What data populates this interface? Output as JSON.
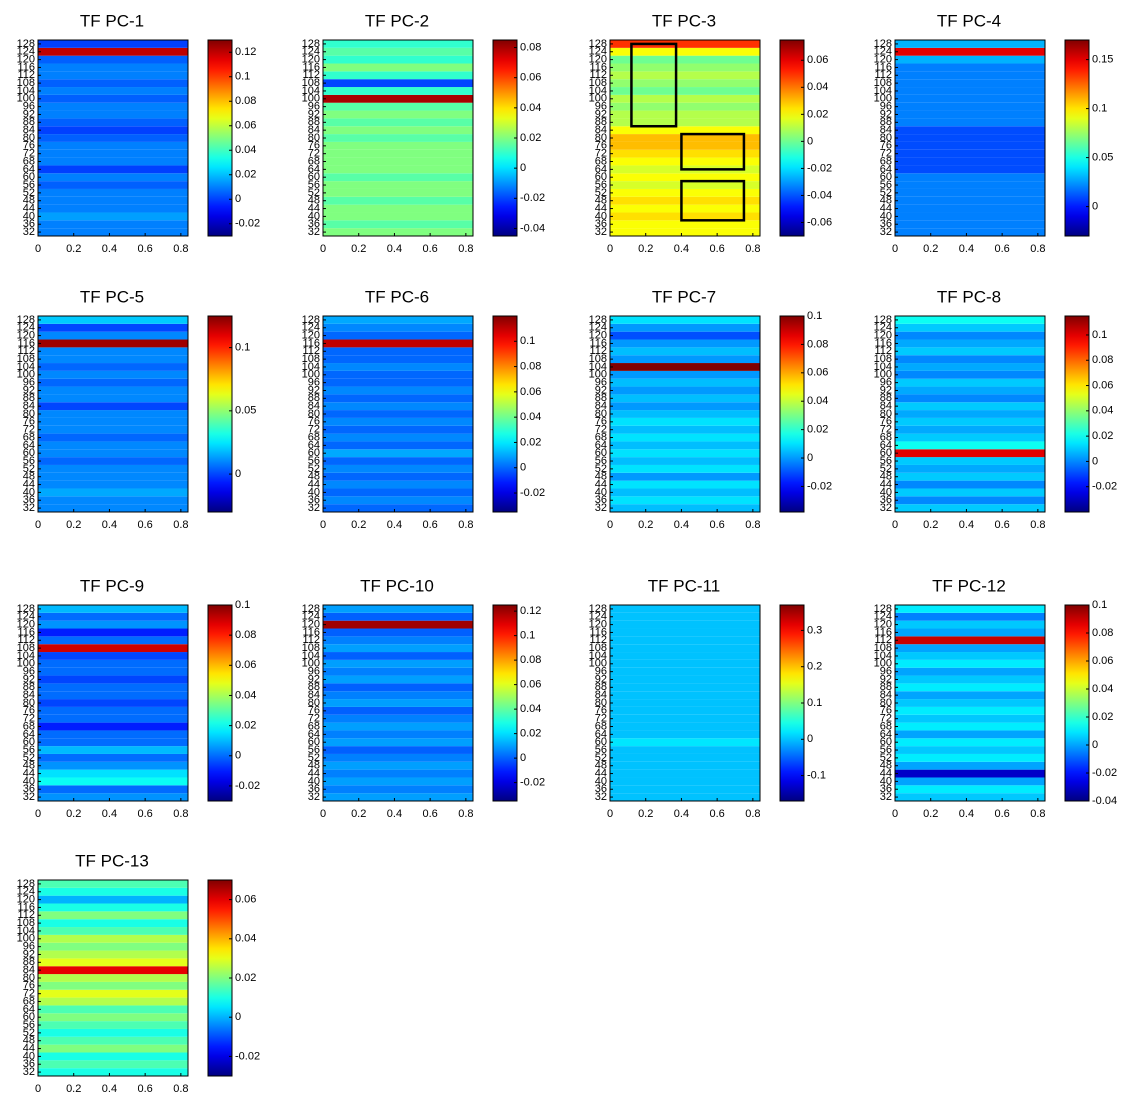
{
  "chart_data": [
    {
      "type": "heatmap",
      "title": "TF PC-1",
      "colormap": "jet",
      "xlim": [
        0,
        0.84
      ],
      "ylim": [
        30,
        130
      ],
      "xticks": [
        0,
        0.2,
        0.4,
        0.6,
        0.8
      ],
      "yticks": [
        32,
        36,
        40,
        44,
        48,
        52,
        56,
        60,
        64,
        68,
        72,
        76,
        80,
        84,
        88,
        92,
        96,
        100,
        104,
        108,
        112,
        116,
        120,
        124,
        128
      ],
      "y": [
        32,
        36,
        40,
        44,
        48,
        52,
        56,
        60,
        64,
        68,
        72,
        76,
        80,
        84,
        88,
        92,
        96,
        100,
        104,
        108,
        112,
        116,
        120,
        124,
        128
      ],
      "values": [
        0.01,
        0.01,
        0.015,
        0.01,
        0.01,
        0.01,
        0.005,
        0.01,
        0,
        0.01,
        0.01,
        0.01,
        0.005,
        0,
        0.005,
        0.01,
        0.01,
        0.005,
        0.01,
        0.005,
        0.01,
        0.01,
        0.005,
        0.12,
        0
      ],
      "clim": [
        -0.03,
        0.13
      ],
      "cticks": [
        -0.02,
        0,
        0.02,
        0.04,
        0.06,
        0.08,
        0.1,
        0.12
      ]
    },
    {
      "type": "heatmap",
      "title": "TF PC-2",
      "colormap": "jet",
      "xlim": [
        0,
        0.84
      ],
      "ylim": [
        30,
        130
      ],
      "xticks": [
        0,
        0.2,
        0.4,
        0.6,
        0.8
      ],
      "yticks": [
        32,
        36,
        40,
        44,
        48,
        52,
        56,
        60,
        64,
        68,
        72,
        76,
        80,
        84,
        88,
        92,
        96,
        100,
        104,
        108,
        112,
        116,
        120,
        124,
        128
      ],
      "y": [
        32,
        36,
        40,
        44,
        48,
        52,
        56,
        60,
        64,
        68,
        72,
        76,
        80,
        84,
        88,
        92,
        96,
        100,
        104,
        108,
        112,
        116,
        120,
        124,
        128
      ],
      "values": [
        0.02,
        0.015,
        0.02,
        0.02,
        0.015,
        0.02,
        0.02,
        0.015,
        0.02,
        0.02,
        0.02,
        0.02,
        0.015,
        0.02,
        0.015,
        0.02,
        0.015,
        0.08,
        0.01,
        -0.02,
        0.01,
        0.02,
        0.01,
        0.015,
        0.01
      ],
      "clim": [
        -0.045,
        0.085
      ],
      "cticks": [
        -0.04,
        -0.02,
        0,
        0.02,
        0.04,
        0.06,
        0.08
      ]
    },
    {
      "type": "heatmap",
      "title": "TF PC-3",
      "colormap": "jet",
      "xlim": [
        0,
        0.84
      ],
      "ylim": [
        30,
        130
      ],
      "xticks": [
        0,
        0.2,
        0.4,
        0.6,
        0.8
      ],
      "yticks": [
        32,
        36,
        40,
        44,
        48,
        52,
        56,
        60,
        64,
        68,
        72,
        76,
        80,
        84,
        88,
        92,
        96,
        100,
        104,
        108,
        112,
        116,
        120,
        124,
        128
      ],
      "y": [
        32,
        36,
        40,
        44,
        48,
        52,
        56,
        60,
        64,
        68,
        72,
        76,
        80,
        84,
        88,
        92,
        96,
        100,
        104,
        108,
        112,
        116,
        120,
        124,
        128
      ],
      "values": [
        0.02,
        0.02,
        0.025,
        0.02,
        0.025,
        0.02,
        0.015,
        0.02,
        0.015,
        0.02,
        0.025,
        0.03,
        0.03,
        0.02,
        0.01,
        0.01,
        0.005,
        0.01,
        0,
        0.005,
        0.01,
        0.005,
        0,
        0.02,
        0.05
      ],
      "clim": [
        -0.07,
        0.075
      ],
      "cticks": [
        -0.06,
        -0.04,
        -0.02,
        0,
        0.02,
        0.04,
        0.06
      ],
      "boxes": [
        {
          "x": [
            0.12,
            0.37
          ],
          "y": [
            86,
            128
          ]
        },
        {
          "x": [
            0.4,
            0.75
          ],
          "y": [
            64,
            82
          ]
        },
        {
          "x": [
            0.4,
            0.75
          ],
          "y": [
            38,
            58
          ]
        }
      ]
    },
    {
      "type": "heatmap",
      "title": "TF PC-4",
      "colormap": "jet",
      "xlim": [
        0,
        0.84
      ],
      "ylim": [
        30,
        130
      ],
      "xticks": [
        0,
        0.2,
        0.4,
        0.6,
        0.8
      ],
      "yticks": [
        32,
        36,
        40,
        44,
        48,
        52,
        56,
        60,
        64,
        68,
        72,
        76,
        80,
        84,
        88,
        92,
        96,
        100,
        104,
        108,
        112,
        116,
        120,
        124,
        128
      ],
      "y": [
        32,
        36,
        40,
        44,
        48,
        52,
        56,
        60,
        64,
        68,
        72,
        76,
        80,
        84,
        88,
        92,
        96,
        100,
        104,
        108,
        112,
        116,
        120,
        124,
        128
      ],
      "values": [
        0.02,
        0.02,
        0.02,
        0.02,
        0.02,
        0.02,
        0.02,
        0.02,
        0.01,
        0.01,
        0.01,
        0.01,
        0.01,
        0.01,
        0.02,
        0.02,
        0.02,
        0.02,
        0.02,
        0.02,
        0.02,
        0.02,
        0.03,
        0.15,
        0.03
      ],
      "clim": [
        -0.03,
        0.17
      ],
      "cticks": [
        0,
        0.05,
        0.1,
        0.15
      ]
    },
    {
      "type": "heatmap",
      "title": "TF PC-5",
      "colormap": "jet",
      "xlim": [
        0,
        0.84
      ],
      "ylim": [
        30,
        130
      ],
      "xticks": [
        0,
        0.2,
        0.4,
        0.6,
        0.8
      ],
      "yticks": [
        32,
        36,
        40,
        44,
        48,
        52,
        56,
        60,
        64,
        68,
        72,
        76,
        80,
        84,
        88,
        92,
        96,
        100,
        104,
        108,
        112,
        116,
        120,
        124,
        128
      ],
      "y": [
        32,
        36,
        40,
        44,
        48,
        52,
        56,
        60,
        64,
        68,
        72,
        76,
        80,
        84,
        88,
        92,
        96,
        100,
        104,
        108,
        112,
        116,
        120,
        124,
        128
      ],
      "values": [
        0.01,
        0.01,
        0.015,
        0.01,
        0.01,
        0.01,
        0.005,
        0.01,
        0.01,
        0.005,
        0.01,
        0.01,
        0.01,
        0,
        0.01,
        0.01,
        0.005,
        0.01,
        0.005,
        0.01,
        0.01,
        0.12,
        0.01,
        0,
        0.02
      ],
      "clim": [
        -0.03,
        0.125
      ],
      "cticks": [
        0,
        0.05,
        0.1
      ]
    },
    {
      "type": "heatmap",
      "title": "TF PC-6",
      "colormap": "jet",
      "xlim": [
        0,
        0.84
      ],
      "ylim": [
        30,
        130
      ],
      "xticks": [
        0,
        0.2,
        0.4,
        0.6,
        0.8
      ],
      "yticks": [
        32,
        36,
        40,
        44,
        48,
        52,
        56,
        60,
        64,
        68,
        72,
        76,
        80,
        84,
        88,
        92,
        96,
        100,
        104,
        108,
        112,
        116,
        120,
        124,
        128
      ],
      "y": [
        32,
        36,
        40,
        44,
        48,
        52,
        56,
        60,
        64,
        68,
        72,
        76,
        80,
        84,
        88,
        92,
        96,
        100,
        104,
        108,
        112,
        116,
        120,
        124,
        128
      ],
      "values": [
        0,
        0.005,
        0,
        0.005,
        0,
        0.005,
        0,
        0.01,
        0,
        0.005,
        0,
        0.005,
        0,
        0.005,
        0,
        0.005,
        0,
        0,
        0.005,
        0,
        0,
        0.11,
        0,
        0.005,
        0.01
      ],
      "clim": [
        -0.035,
        0.12
      ],
      "cticks": [
        -0.02,
        0,
        0.02,
        0.04,
        0.06,
        0.08,
        0.1
      ]
    },
    {
      "type": "heatmap",
      "title": "TF PC-7",
      "colormap": "jet",
      "xlim": [
        0,
        0.84
      ],
      "ylim": [
        30,
        130
      ],
      "xticks": [
        0,
        0.2,
        0.4,
        0.6,
        0.8
      ],
      "yticks": [
        32,
        36,
        40,
        44,
        48,
        52,
        56,
        60,
        64,
        68,
        72,
        76,
        80,
        84,
        88,
        92,
        96,
        100,
        104,
        108,
        112,
        116,
        120,
        124,
        128
      ],
      "y": [
        32,
        36,
        40,
        44,
        48,
        52,
        56,
        60,
        64,
        68,
        72,
        76,
        80,
        84,
        88,
        92,
        96,
        100,
        104,
        108,
        112,
        116,
        120,
        124,
        128
      ],
      "values": [
        0.005,
        0.01,
        0.005,
        0.01,
        0,
        0.01,
        0.005,
        0.01,
        0.005,
        0.01,
        0.005,
        0.01,
        0.005,
        0,
        0.005,
        0,
        0.005,
        0,
        0.1,
        0,
        0.005,
        0,
        -0.01,
        0,
        0.01
      ],
      "clim": [
        -0.038,
        0.1
      ],
      "cticks": [
        -0.02,
        0,
        0.02,
        0.04,
        0.06,
        0.08,
        0.1
      ]
    },
    {
      "type": "heatmap",
      "title": "TF PC-8",
      "colormap": "jet",
      "xlim": [
        0,
        0.84
      ],
      "ylim": [
        30,
        130
      ],
      "xticks": [
        0,
        0.2,
        0.4,
        0.6,
        0.8
      ],
      "yticks": [
        32,
        36,
        40,
        44,
        48,
        52,
        56,
        60,
        64,
        68,
        72,
        76,
        80,
        84,
        88,
        92,
        96,
        100,
        104,
        108,
        112,
        116,
        120,
        124,
        128
      ],
      "y": [
        32,
        36,
        40,
        44,
        48,
        52,
        56,
        60,
        64,
        68,
        72,
        76,
        80,
        84,
        88,
        92,
        96,
        100,
        104,
        108,
        112,
        116,
        120,
        124,
        128
      ],
      "values": [
        0.01,
        0,
        0.01,
        0,
        0.01,
        0.005,
        0.01,
        0.1,
        0.02,
        0.01,
        0.005,
        0.01,
        0.005,
        0.01,
        0,
        0.005,
        0.01,
        0,
        0.005,
        0,
        0.01,
        0.005,
        0,
        0.01,
        0.02
      ],
      "clim": [
        -0.04,
        0.115
      ],
      "cticks": [
        -0.02,
        0,
        0.02,
        0.04,
        0.06,
        0.08,
        0.1
      ]
    },
    {
      "type": "heatmap",
      "title": "TF PC-9",
      "colormap": "jet",
      "xlim": [
        0,
        0.84
      ],
      "ylim": [
        30,
        130
      ],
      "xticks": [
        0,
        0.2,
        0.4,
        0.6,
        0.8
      ],
      "yticks": [
        32,
        36,
        40,
        44,
        48,
        52,
        56,
        60,
        64,
        68,
        72,
        76,
        80,
        84,
        88,
        92,
        96,
        100,
        104,
        108,
        112,
        116,
        120,
        124,
        128
      ],
      "y": [
        32,
        36,
        40,
        44,
        48,
        52,
        56,
        60,
        64,
        68,
        72,
        76,
        80,
        84,
        88,
        92,
        96,
        100,
        104,
        108,
        112,
        116,
        120,
        124,
        128
      ],
      "values": [
        0.005,
        0,
        0.02,
        0.015,
        0.005,
        0,
        0.01,
        0,
        0,
        -0.01,
        0,
        0,
        -0.005,
        0,
        0,
        -0.005,
        0,
        0,
        -0.005,
        0.09,
        0,
        -0.01,
        0.005,
        0,
        0.01
      ],
      "clim": [
        -0.03,
        0.1
      ],
      "cticks": [
        -0.02,
        0,
        0.02,
        0.04,
        0.06,
        0.08,
        0.1
      ]
    },
    {
      "type": "heatmap",
      "title": "TF PC-10",
      "colormap": "jet",
      "xlim": [
        0,
        0.84
      ],
      "ylim": [
        30,
        130
      ],
      "xticks": [
        0,
        0.2,
        0.4,
        0.6,
        0.8
      ],
      "yticks": [
        32,
        36,
        40,
        44,
        48,
        52,
        56,
        60,
        64,
        68,
        72,
        76,
        80,
        84,
        88,
        92,
        96,
        100,
        104,
        108,
        112,
        116,
        120,
        124,
        128
      ],
      "y": [
        32,
        36,
        40,
        44,
        48,
        52,
        56,
        60,
        64,
        68,
        72,
        76,
        80,
        84,
        88,
        92,
        96,
        100,
        104,
        108,
        112,
        116,
        120,
        124,
        128
      ],
      "values": [
        0.01,
        0.005,
        0.01,
        0.005,
        0.01,
        0.005,
        0,
        0.01,
        0.005,
        0.01,
        0.005,
        0,
        0.01,
        0.005,
        0,
        0.01,
        0.005,
        0.01,
        0,
        0.01,
        0.005,
        0,
        0.12,
        0,
        0.01
      ],
      "clim": [
        -0.035,
        0.125
      ],
      "cticks": [
        -0.02,
        0,
        0.02,
        0.04,
        0.06,
        0.08,
        0.1,
        0.12
      ]
    },
    {
      "type": "heatmap",
      "title": "TF PC-11",
      "colormap": "jet",
      "xlim": [
        0,
        0.84
      ],
      "ylim": [
        30,
        130
      ],
      "xticks": [
        0,
        0.2,
        0.4,
        0.6,
        0.8
      ],
      "yticks": [
        32,
        36,
        40,
        44,
        48,
        52,
        56,
        60,
        64,
        68,
        72,
        76,
        80,
        84,
        88,
        92,
        96,
        100,
        104,
        108,
        112,
        116,
        120,
        124,
        128
      ],
      "y": [
        32,
        36,
        40,
        44,
        48,
        52,
        56,
        60,
        64,
        68,
        72,
        76,
        80,
        84,
        88,
        92,
        96,
        100,
        104,
        108,
        112,
        116,
        120,
        124,
        128
      ],
      "values": [
        0,
        0,
        0,
        0,
        0,
        0,
        0,
        0.02,
        0,
        0,
        0,
        0,
        0,
        0,
        0,
        0,
        0,
        0,
        0,
        0,
        0,
        0,
        0,
        0,
        0
      ],
      "clim": [
        -0.17,
        0.37
      ],
      "cticks": [
        -0.1,
        0,
        0.1,
        0.2,
        0.3
      ]
    },
    {
      "type": "heatmap",
      "title": "TF PC-12",
      "colormap": "jet",
      "xlim": [
        0,
        0.84
      ],
      "ylim": [
        30,
        130
      ],
      "xticks": [
        0,
        0.2,
        0.4,
        0.6,
        0.8
      ],
      "yticks": [
        32,
        36,
        40,
        44,
        48,
        52,
        56,
        60,
        64,
        68,
        72,
        76,
        80,
        84,
        88,
        92,
        96,
        100,
        104,
        108,
        112,
        116,
        120,
        124,
        128
      ],
      "y": [
        32,
        36,
        40,
        44,
        48,
        52,
        56,
        60,
        64,
        68,
        72,
        76,
        80,
        84,
        88,
        92,
        96,
        100,
        104,
        108,
        112,
        116,
        120,
        124,
        128
      ],
      "values": [
        0.005,
        0.01,
        0,
        -0.03,
        0,
        0.01,
        0.005,
        0.01,
        0,
        0.01,
        0.005,
        0.01,
        0.005,
        0,
        0.01,
        0.005,
        0,
        0.01,
        0.005,
        0,
        0.09,
        0,
        0.005,
        -0.005,
        0.01
      ],
      "clim": [
        -0.04,
        0.1
      ],
      "cticks": [
        -0.04,
        -0.02,
        0,
        0.02,
        0.04,
        0.06,
        0.08,
        0.1
      ]
    },
    {
      "type": "heatmap",
      "title": "TF PC-13",
      "colormap": "jet",
      "xlim": [
        0,
        0.84
      ],
      "ylim": [
        30,
        130
      ],
      "xticks": [
        0,
        0.2,
        0.4,
        0.6,
        0.8
      ],
      "yticks": [
        32,
        36,
        40,
        44,
        48,
        52,
        56,
        60,
        64,
        68,
        72,
        76,
        80,
        84,
        88,
        92,
        96,
        100,
        104,
        108,
        112,
        116,
        120,
        124,
        128
      ],
      "y": [
        32,
        36,
        40,
        44,
        48,
        52,
        56,
        60,
        64,
        68,
        72,
        76,
        80,
        84,
        88,
        92,
        96,
        100,
        104,
        108,
        112,
        116,
        120,
        124,
        128
      ],
      "values": [
        0.01,
        0.015,
        0.01,
        0.02,
        0.015,
        0.01,
        0.015,
        0.02,
        0.015,
        0.025,
        0.03,
        0.02,
        0.025,
        0.06,
        0.03,
        0.025,
        0.02,
        0.025,
        0.015,
        0.01,
        0.02,
        0.01,
        0,
        0.01,
        0.015
      ],
      "clim": [
        -0.03,
        0.07
      ],
      "cticks": [
        -0.02,
        0,
        0.02,
        0.04,
        0.06
      ]
    }
  ]
}
